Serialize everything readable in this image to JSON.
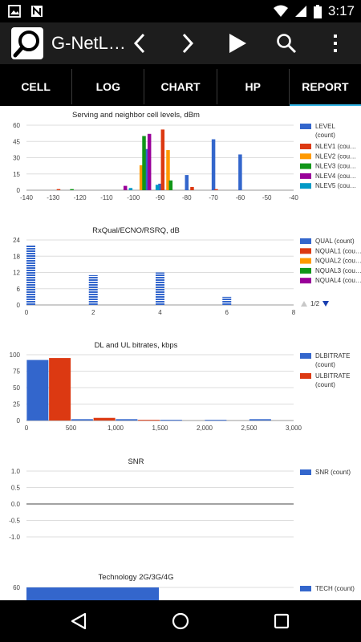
{
  "status": {
    "time": "3:17"
  },
  "app": {
    "title": "G-NetL…"
  },
  "tabs": [
    {
      "label": "CELL"
    },
    {
      "label": "LOG"
    },
    {
      "label": "CHART"
    },
    {
      "label": "HP"
    },
    {
      "label": "REPORT"
    }
  ],
  "pager": {
    "text": "1/2"
  },
  "chart_data": [
    {
      "type": "bar",
      "title": "Serving and neighbor cell levels, dBm",
      "xlim": [
        -140,
        -40
      ],
      "ylim": [
        0,
        60
      ],
      "xticks": [
        -140,
        -130,
        -120,
        -110,
        -100,
        -90,
        -80,
        -70,
        -60,
        -50,
        -40
      ],
      "yticks": [
        0,
        15,
        30,
        45,
        60
      ],
      "legend": [
        "LEVEL\n(count)",
        "NLEV1 (cou…",
        "NLEV2 (cou…",
        "NLEV3 (cou…",
        "NLEV4 (cou…",
        "NLEV5 (cou…"
      ],
      "series": [
        {
          "color": "#3366cc",
          "x": [
            -95,
            -90,
            -80,
            -70,
            -60
          ],
          "values": [
            38,
            6,
            14,
            47,
            33
          ]
        },
        {
          "color": "#dc3912",
          "x": [
            -128,
            -89,
            -78,
            -69
          ],
          "values": [
            1,
            56,
            3,
            1
          ]
        },
        {
          "color": "#ff9900",
          "x": [
            -97,
            -87
          ],
          "values": [
            23,
            37
          ]
        },
        {
          "color": "#109618",
          "x": [
            -123,
            -96,
            -86
          ],
          "values": [
            1,
            50,
            9
          ]
        },
        {
          "color": "#990099",
          "x": [
            -103,
            -94
          ],
          "values": [
            4,
            52
          ]
        },
        {
          "color": "#0099c6",
          "x": [
            -101,
            -91
          ],
          "values": [
            2,
            5
          ]
        }
      ]
    },
    {
      "type": "bar",
      "title": "RxQual/ECNO/RSRQ, dB",
      "xlim": [
        0,
        8
      ],
      "ylim": [
        0,
        24
      ],
      "xticks": [
        0,
        2,
        4,
        6,
        8
      ],
      "yticks": [
        0,
        6,
        12,
        18,
        24
      ],
      "legend": [
        "QUAL (count)",
        "NQUAL1 (cou…",
        "NQUAL2 (cou…",
        "NQUAL3 (cou…",
        "NQUAL4 (cou…"
      ],
      "series": [
        {
          "color": "#3366cc",
          "x": [
            0,
            2,
            4,
            6
          ],
          "values": [
            22,
            11,
            12,
            3
          ]
        }
      ]
    },
    {
      "type": "bar",
      "title": "DL and UL bitrates, kbps",
      "xlim": [
        0,
        3000
      ],
      "ylim": [
        0,
        100
      ],
      "xticks": [
        0,
        500,
        1000,
        1500,
        2000,
        2500,
        3000
      ],
      "xticklabels": [
        "0",
        "500",
        "1,000",
        "1,500",
        "2,000",
        "2,500",
        "3,000"
      ],
      "yticks": [
        0,
        25,
        50,
        75,
        100
      ],
      "legend": [
        "DLBITRATE\n(count)",
        "ULBITRATE\n(count)"
      ],
      "series": [
        {
          "color": "#3366cc",
          "x": [
            125,
            625,
            1125,
            1625,
            2125,
            2625
          ],
          "values": [
            92,
            2,
            2,
            1,
            1,
            2
          ]
        },
        {
          "color": "#dc3912",
          "x": [
            375,
            875,
            1375
          ],
          "values": [
            95,
            4,
            1
          ]
        }
      ]
    },
    {
      "type": "line",
      "title": "SNR",
      "ylim": [
        -1.0,
        1.0
      ],
      "yticks": [
        -1.0,
        -0.5,
        0.0,
        0.5,
        1.0
      ],
      "yticklabels": [
        "-1.0",
        "-0.5",
        "0.0",
        "0.5",
        "1.0"
      ],
      "legend": [
        "SNR (count)"
      ],
      "series": [
        {
          "color": "#3366cc",
          "values": []
        }
      ]
    },
    {
      "type": "bar",
      "title": "Technology 2G/3G/4G",
      "yticks": [
        60
      ],
      "legend": [
        "TECH (count)"
      ],
      "series": [
        {
          "color": "#3366cc",
          "values": [
            60
          ]
        }
      ]
    }
  ]
}
